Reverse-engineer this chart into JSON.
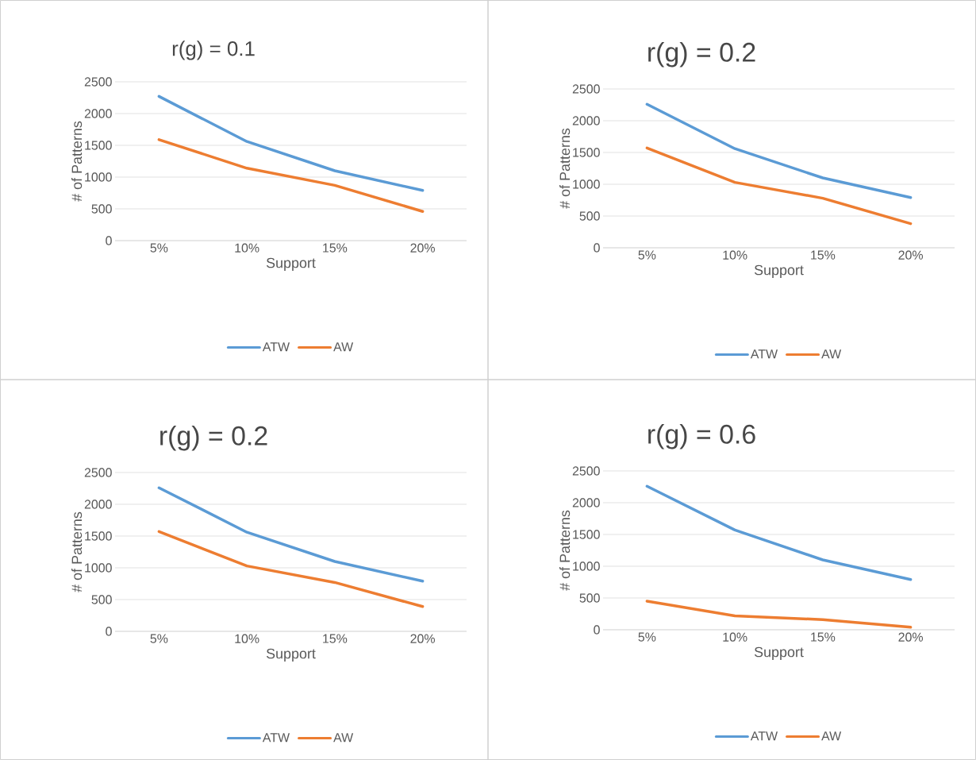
{
  "chart_data": [
    {
      "type": "line",
      "title": "r(g) = 0.1",
      "xlabel": "Support",
      "ylabel": "# of Patterns",
      "categories": [
        "5%",
        "10%",
        "15%",
        "20%"
      ],
      "ylim": [
        0,
        2500
      ],
      "yticks": [
        0,
        500,
        1000,
        1500,
        2000,
        2500
      ],
      "grid": "y",
      "legend": "bottom",
      "marker": "none",
      "line_style": "solid",
      "series": [
        {
          "name": "ATW",
          "color": "#5b9bd5",
          "values": [
            2270,
            1560,
            1100,
            790
          ]
        },
        {
          "name": "AW",
          "color": "#ed7d31",
          "values": [
            1590,
            1140,
            870,
            460
          ]
        }
      ]
    },
    {
      "type": "line",
      "title": "r(g) = 0.2",
      "xlabel": "Support",
      "ylabel": "# of Patterns",
      "categories": [
        "5%",
        "10%",
        "15%",
        "20%"
      ],
      "ylim": [
        0,
        2500
      ],
      "yticks": [
        0,
        500,
        1000,
        1500,
        2000,
        2500
      ],
      "grid": "y",
      "legend": "bottom",
      "marker": "none",
      "line_style": "solid",
      "series": [
        {
          "name": "ATW",
          "color": "#5b9bd5",
          "values": [
            2260,
            1560,
            1100,
            790
          ]
        },
        {
          "name": "AW",
          "color": "#ed7d31",
          "values": [
            1570,
            1030,
            780,
            380
          ]
        }
      ]
    },
    {
      "type": "line",
      "title": "r(g) = 0.2",
      "xlabel": "Support",
      "ylabel": "# of Patterns",
      "categories": [
        "5%",
        "10%",
        "15%",
        "20%"
      ],
      "ylim": [
        0,
        2500
      ],
      "yticks": [
        0,
        500,
        1000,
        1500,
        2000,
        2500
      ],
      "grid": "y",
      "legend": "bottom",
      "marker": "none",
      "line_style": "solid",
      "series": [
        {
          "name": "ATW",
          "color": "#5b9bd5",
          "values": [
            2260,
            1560,
            1100,
            790
          ]
        },
        {
          "name": "AW",
          "color": "#ed7d31",
          "values": [
            1570,
            1030,
            770,
            390
          ]
        }
      ]
    },
    {
      "type": "line",
      "title": "r(g) = 0.6",
      "xlabel": "Support",
      "ylabel": "# of Patterns",
      "categories": [
        "5%",
        "10%",
        "15%",
        "20%"
      ],
      "ylim": [
        0,
        2500
      ],
      "yticks": [
        0,
        500,
        1000,
        1500,
        2000,
        2500
      ],
      "grid": "y",
      "legend": "bottom",
      "marker": "none",
      "line_style": "solid",
      "series": [
        {
          "name": "ATW",
          "color": "#5b9bd5",
          "values": [
            2260,
            1570,
            1100,
            790
          ]
        },
        {
          "name": "AW",
          "color": "#ed7d31",
          "values": [
            450,
            220,
            160,
            40
          ]
        }
      ]
    }
  ]
}
